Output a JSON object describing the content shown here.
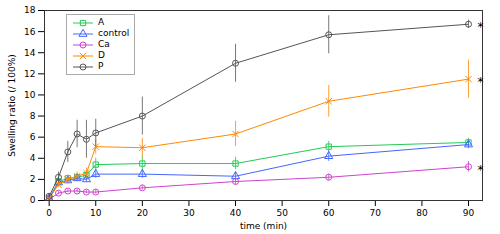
{
  "chart_data": {
    "type": "line",
    "xlabel": "time (min)",
    "ylabel": "Swelling ratio (/ 100%)",
    "x": [
      0,
      2,
      4,
      6,
      8,
      10,
      20,
      40,
      60,
      90
    ],
    "series": [
      {
        "name": "A",
        "color": "#22cc55",
        "marker": "square",
        "values": [
          0.2,
          1.8,
          2.1,
          2.2,
          2.4,
          3.4,
          3.5,
          3.5,
          5.1,
          5.5
        ],
        "errors": [
          0.1,
          0.3,
          0.3,
          0.3,
          0.4,
          0.6,
          0.7,
          0.6,
          0.5,
          0.4
        ]
      },
      {
        "name": "control",
        "color": "#4466ff",
        "marker": "triangle",
        "values": [
          0.2,
          1.7,
          1.9,
          2.1,
          2.0,
          2.5,
          2.5,
          2.3,
          4.2,
          5.3
        ],
        "errors": [
          0.1,
          0.3,
          0.3,
          0.3,
          0.3,
          0.4,
          0.4,
          0.4,
          0.5,
          0.4
        ]
      },
      {
        "name": "Ca",
        "color": "#cc44cc",
        "marker": "circle",
        "values": [
          0.1,
          0.7,
          0.9,
          0.9,
          0.8,
          0.8,
          1.2,
          1.8,
          2.2,
          3.2
        ],
        "errors": [
          0.05,
          0.15,
          0.15,
          0.15,
          0.15,
          0.2,
          0.2,
          0.3,
          0.3,
          0.5
        ]
      },
      {
        "name": "D",
        "color": "#ff8800",
        "marker": "x",
        "values": [
          0.2,
          1.5,
          2.0,
          2.3,
          2.6,
          5.1,
          5.0,
          6.3,
          9.4,
          11.5
        ],
        "errors": [
          0.1,
          0.3,
          0.4,
          0.4,
          0.5,
          0.7,
          0.9,
          1.2,
          1.5,
          1.8
        ]
      },
      {
        "name": "P",
        "color": "#555555",
        "marker": "circle",
        "values": [
          0.4,
          2.2,
          4.6,
          6.3,
          5.8,
          6.4,
          8.0,
          13.0,
          15.7,
          16.7
        ],
        "errors": [
          0.2,
          0.5,
          1.0,
          1.3,
          1.8,
          1.3,
          1.8,
          1.8,
          1.8,
          0.4
        ]
      }
    ],
    "annotations": [
      {
        "text": "*",
        "x": 91.5,
        "y": 16.7
      },
      {
        "text": "*",
        "x": 91.5,
        "y": 11.5
      },
      {
        "text": "*",
        "x": 91.5,
        "y": 3.2
      }
    ],
    "xlim": [
      -1,
      93
    ],
    "ylim": [
      0,
      18
    ],
    "xticks": [
      0,
      10,
      20,
      30,
      40,
      50,
      60,
      70,
      80,
      90
    ],
    "yticks": [
      0,
      2,
      4,
      6,
      8,
      10,
      12,
      14,
      16,
      18
    ],
    "legend": "upper left",
    "grid": false
  }
}
